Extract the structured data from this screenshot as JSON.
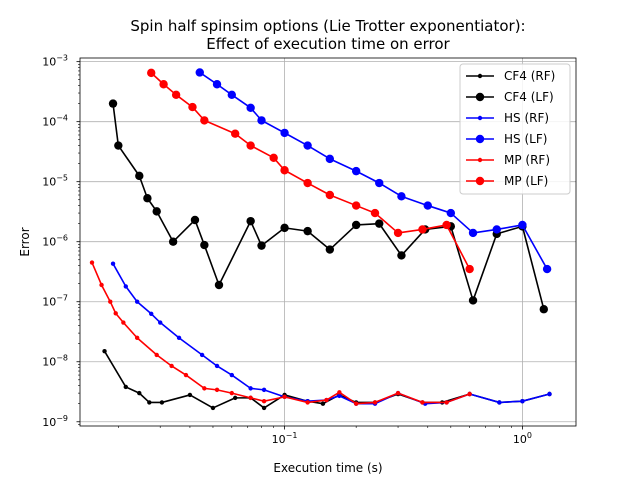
{
  "chart_data": {
    "type": "line",
    "title": "Spin half spinsim options (Lie Trotter exponentiator):",
    "subtitle": "Effect of execution time on error",
    "xlabel": "Execution time (s)",
    "ylabel": "Error",
    "x_scale": "log",
    "y_scale": "log",
    "xlim": [
      0.0138,
      1.68
    ],
    "ylim": [
      8.5e-10,
      0.00115
    ],
    "x_ticks": [
      {
        "value": 0.1,
        "base": "10",
        "exp": "−1"
      },
      {
        "value": 1,
        "base": "10",
        "exp": "0"
      }
    ],
    "y_ticks": [
      {
        "value": 1e-09,
        "base": "10",
        "exp": "−9"
      },
      {
        "value": 1e-08,
        "base": "10",
        "exp": "−8"
      },
      {
        "value": 1e-07,
        "base": "10",
        "exp": "−7"
      },
      {
        "value": 1e-06,
        "base": "10",
        "exp": "−6"
      },
      {
        "value": 1e-05,
        "base": "10",
        "exp": "−5"
      },
      {
        "value": 0.0001,
        "base": "10",
        "exp": "−4"
      },
      {
        "value": 0.001,
        "base": "10",
        "exp": "−3"
      }
    ],
    "grid": true,
    "legend_position": "top-right",
    "series": [
      {
        "name": "CF4 (RF)",
        "color": "#000000",
        "marker": "small",
        "points": [
          [
            0.0175,
            1.5e-08
          ],
          [
            0.0215,
            3.8e-09
          ],
          [
            0.0245,
            3e-09
          ],
          [
            0.027,
            2.1e-09
          ],
          [
            0.0305,
            2.1e-09
          ],
          [
            0.04,
            2.8e-09
          ],
          [
            0.05,
            1.7e-09
          ],
          [
            0.062,
            2.5e-09
          ],
          [
            0.072,
            2.5e-09
          ],
          [
            0.082,
            1.7e-09
          ],
          [
            0.1,
            2.8e-09
          ],
          [
            0.125,
            2.2e-09
          ],
          [
            0.145,
            2e-09
          ],
          [
            0.17,
            2.8e-09
          ],
          [
            0.2,
            2.1e-09
          ],
          [
            0.24,
            2.1e-09
          ],
          [
            0.3,
            2.9e-09
          ],
          [
            0.38,
            2.1e-09
          ],
          [
            0.46,
            2.1e-09
          ],
          [
            0.6,
            2.9e-09
          ],
          [
            0.8,
            2.1e-09
          ],
          [
            1.0,
            2.2e-09
          ],
          [
            1.3,
            2.9e-09
          ]
        ]
      },
      {
        "name": "CF4 (LF)",
        "color": "#000000",
        "marker": "large",
        "points": [
          [
            0.019,
            0.0002
          ],
          [
            0.02,
            4e-05
          ],
          [
            0.0245,
            1.25e-05
          ],
          [
            0.0265,
            5.3e-06
          ],
          [
            0.029,
            3.2e-06
          ],
          [
            0.034,
            1e-06
          ],
          [
            0.042,
            2.3e-06
          ],
          [
            0.046,
            8.8e-07
          ],
          [
            0.053,
            1.9e-07
          ],
          [
            0.072,
            2.2e-06
          ],
          [
            0.08,
            8.6e-07
          ],
          [
            0.1,
            1.7e-06
          ],
          [
            0.125,
            1.5e-06
          ],
          [
            0.155,
            7.4e-07
          ],
          [
            0.2,
            1.9e-06
          ],
          [
            0.25,
            2e-06
          ],
          [
            0.31,
            5.9e-07
          ],
          [
            0.39,
            1.6e-06
          ],
          [
            0.5,
            1.8e-06
          ],
          [
            0.62,
            1.05e-07
          ],
          [
            0.78,
            1.35e-06
          ],
          [
            1.0,
            1.8e-06
          ],
          [
            1.23,
            7.5e-08
          ]
        ]
      },
      {
        "name": "HS (RF)",
        "color": "#0000ff",
        "marker": "small",
        "points": [
          [
            0.019,
            4.3e-07
          ],
          [
            0.0215,
            1.8e-07
          ],
          [
            0.024,
            1e-07
          ],
          [
            0.0275,
            6.3e-08
          ],
          [
            0.03,
            4.5e-08
          ],
          [
            0.036,
            2.5e-08
          ],
          [
            0.045,
            1.3e-08
          ],
          [
            0.052,
            8.5e-09
          ],
          [
            0.06,
            6e-09
          ],
          [
            0.072,
            3.6e-09
          ],
          [
            0.082,
            3.4e-09
          ],
          [
            0.1,
            2.6e-09
          ],
          [
            0.125,
            2.2e-09
          ],
          [
            0.15,
            2.3e-09
          ],
          [
            0.17,
            2.7e-09
          ],
          [
            0.2,
            2e-09
          ],
          [
            0.24,
            2e-09
          ],
          [
            0.3,
            3e-09
          ],
          [
            0.39,
            2e-09
          ],
          [
            0.48,
            2.1e-09
          ],
          [
            0.6,
            2.9e-09
          ],
          [
            0.8,
            2.1e-09
          ],
          [
            1.0,
            2.2e-09
          ],
          [
            1.3,
            2.9e-09
          ]
        ]
      },
      {
        "name": "HS (LF)",
        "color": "#0000ff",
        "marker": "large",
        "points": [
          [
            0.044,
            0.00066
          ],
          [
            0.052,
            0.00042
          ],
          [
            0.06,
            0.00028
          ],
          [
            0.072,
            0.00017
          ],
          [
            0.08,
            0.000105
          ],
          [
            0.1,
            6.5e-05
          ],
          [
            0.125,
            4e-05
          ],
          [
            0.155,
            2.4e-05
          ],
          [
            0.2,
            1.5e-05
          ],
          [
            0.25,
            9.5e-06
          ],
          [
            0.31,
            5.7e-06
          ],
          [
            0.4,
            4e-06
          ],
          [
            0.5,
            3e-06
          ],
          [
            0.62,
            1.4e-06
          ],
          [
            0.78,
            1.6e-06
          ],
          [
            1.0,
            1.9e-06
          ],
          [
            1.27,
            3.5e-07
          ]
        ]
      },
      {
        "name": "MP (RF)",
        "color": "#ff0000",
        "marker": "small",
        "points": [
          [
            0.0155,
            4.5e-07
          ],
          [
            0.017,
            1.9e-07
          ],
          [
            0.0185,
            1e-07
          ],
          [
            0.0195,
            6.4e-08
          ],
          [
            0.021,
            4.5e-08
          ],
          [
            0.024,
            2.5e-08
          ],
          [
            0.029,
            1.3e-08
          ],
          [
            0.0335,
            8.5e-09
          ],
          [
            0.0385,
            6e-09
          ],
          [
            0.046,
            3.6e-09
          ],
          [
            0.052,
            3.4e-09
          ],
          [
            0.06,
            3e-09
          ],
          [
            0.072,
            2.5e-09
          ],
          [
            0.082,
            2.2e-09
          ],
          [
            0.1,
            2.6e-09
          ],
          [
            0.125,
            2.1e-09
          ],
          [
            0.15,
            2.3e-09
          ],
          [
            0.17,
            3.1e-09
          ],
          [
            0.2,
            2e-09
          ],
          [
            0.24,
            2.1e-09
          ],
          [
            0.3,
            3e-09
          ],
          [
            0.38,
            2.1e-09
          ],
          [
            0.48,
            2.1e-09
          ],
          [
            0.6,
            2.9e-09
          ]
        ]
      },
      {
        "name": "MP (LF)",
        "color": "#ff0000",
        "marker": "large",
        "points": [
          [
            0.0275,
            0.00065
          ],
          [
            0.031,
            0.00042
          ],
          [
            0.035,
            0.00028
          ],
          [
            0.041,
            0.000175
          ],
          [
            0.046,
            0.000105
          ],
          [
            0.062,
            6.3e-05
          ],
          [
            0.072,
            4e-05
          ],
          [
            0.09,
            2.5e-05
          ],
          [
            0.1,
            1.55e-05
          ],
          [
            0.125,
            9.5e-06
          ],
          [
            0.155,
            6e-06
          ],
          [
            0.2,
            4e-06
          ],
          [
            0.24,
            3e-06
          ],
          [
            0.3,
            1.4e-06
          ],
          [
            0.38,
            1.6e-06
          ],
          [
            0.48,
            1.9e-06
          ],
          [
            0.6,
            3.5e-07
          ]
        ]
      }
    ]
  }
}
